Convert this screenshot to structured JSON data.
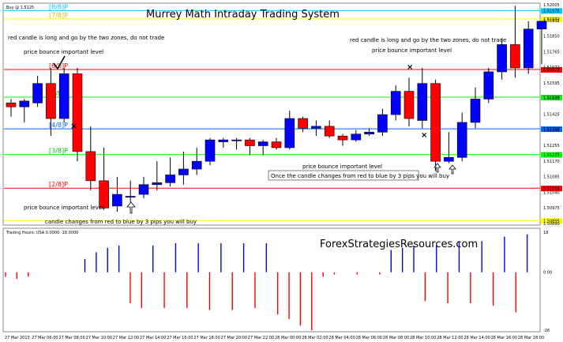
{
  "chart_data": {
    "type": "candlestick",
    "title": "Murrey Math Intraday Trading System",
    "symbol_label": "Buy @ 1.5125",
    "website": "ForexStrategiesResources.com",
    "price_axis": {
      "ylim": [
        1.5088,
        1.52005
      ],
      "ticks": [
        "1.52005",
        "1.51932",
        "1.51850",
        "1.51765",
        "1.51672",
        "1.51595",
        "1.51510",
        "1.51425",
        "1.51340",
        "1.51255",
        "1.51170",
        "1.51085",
        "1.51040",
        "1.50975",
        "1.50890"
      ]
    },
    "murrey_levels": [
      {
        "label": "[8/8]P",
        "price": 1.51975,
        "color": "#00c8ff",
        "tag": "1.51975"
      },
      {
        "label": "[7/8]P",
        "price": 1.51932,
        "color": "#ffff00",
        "tag": "1.51932"
      },
      {
        "label": "[6/8]P",
        "price": 1.51672,
        "color": "#ff0000",
        "tag": "1.51672"
      },
      {
        "label": "[5/8]P",
        "price": 1.5153,
        "color": "#00ff00",
        "tag": "1.51530"
      },
      {
        "label": "[4/8]P",
        "price": 1.51367,
        "color": "#0066ff",
        "tag": "1.51367"
      },
      {
        "label": "[3/8]P",
        "price": 1.51235,
        "color": "#00ff00",
        "tag": "1.51235"
      },
      {
        "label": "[2/8]P",
        "price": 1.51062,
        "color": "#ff0000",
        "tag": "1.51062"
      },
      {
        "label": "",
        "price": 1.50895,
        "color": "#ffff00",
        "tag": "1.50895"
      }
    ],
    "candles": [
      {
        "o": 1.515,
        "h": 1.5152,
        "l": 1.5143,
        "c": 1.5148
      },
      {
        "o": 1.5148,
        "h": 1.5152,
        "l": 1.514,
        "c": 1.5151
      },
      {
        "o": 1.515,
        "h": 1.5164,
        "l": 1.5148,
        "c": 1.516
      },
      {
        "o": 1.516,
        "h": 1.5168,
        "l": 1.5133,
        "c": 1.5142
      },
      {
        "o": 1.5142,
        "h": 1.5168,
        "l": 1.514,
        "c": 1.5165
      },
      {
        "o": 1.5165,
        "h": 1.5168,
        "l": 1.512,
        "c": 1.5125
      },
      {
        "o": 1.5125,
        "h": 1.5138,
        "l": 1.5105,
        "c": 1.511
      },
      {
        "o": 1.511,
        "h": 1.5127,
        "l": 1.5095,
        "c": 1.5096
      },
      {
        "o": 1.5097,
        "h": 1.5112,
        "l": 1.5094,
        "c": 1.5103
      },
      {
        "o": 1.5102,
        "h": 1.511,
        "l": 1.5096,
        "c": 1.5102
      },
      {
        "o": 1.5103,
        "h": 1.5112,
        "l": 1.5101,
        "c": 1.5108
      },
      {
        "o": 1.5108,
        "h": 1.512,
        "l": 1.5105,
        "c": 1.5109
      },
      {
        "o": 1.5109,
        "h": 1.5122,
        "l": 1.5107,
        "c": 1.5113
      },
      {
        "o": 1.5113,
        "h": 1.5125,
        "l": 1.5108,
        "c": 1.5116
      },
      {
        "o": 1.5116,
        "h": 1.5127,
        "l": 1.5113,
        "c": 1.512
      },
      {
        "o": 1.512,
        "h": 1.5132,
        "l": 1.5118,
        "c": 1.5131
      },
      {
        "o": 1.513,
        "h": 1.5132,
        "l": 1.5127,
        "c": 1.5131
      },
      {
        "o": 1.5131,
        "h": 1.5132,
        "l": 1.5126,
        "c": 1.5131
      },
      {
        "o": 1.5131,
        "h": 1.5132,
        "l": 1.5123,
        "c": 1.5128
      },
      {
        "o": 1.5128,
        "h": 1.5131,
        "l": 1.5123,
        "c": 1.513
      },
      {
        "o": 1.513,
        "h": 1.5132,
        "l": 1.5126,
        "c": 1.5127
      },
      {
        "o": 1.5127,
        "h": 1.5146,
        "l": 1.5126,
        "c": 1.5142
      },
      {
        "o": 1.5142,
        "h": 1.5143,
        "l": 1.5135,
        "c": 1.5137
      },
      {
        "o": 1.5137,
        "h": 1.5141,
        "l": 1.5133,
        "c": 1.5138
      },
      {
        "o": 1.5138,
        "h": 1.5141,
        "l": 1.5132,
        "c": 1.5133
      },
      {
        "o": 1.5133,
        "h": 1.5134,
        "l": 1.5128,
        "c": 1.5131
      },
      {
        "o": 1.5131,
        "h": 1.5136,
        "l": 1.513,
        "c": 1.5134
      },
      {
        "o": 1.5134,
        "h": 1.5137,
        "l": 1.5133,
        "c": 1.5135
      },
      {
        "o": 1.5135,
        "h": 1.5147,
        "l": 1.5133,
        "c": 1.5144
      },
      {
        "o": 1.5144,
        "h": 1.5159,
        "l": 1.5141,
        "c": 1.5156
      },
      {
        "o": 1.5156,
        "h": 1.5163,
        "l": 1.5138,
        "c": 1.5142
      },
      {
        "o": 1.5141,
        "h": 1.5168,
        "l": 1.5137,
        "c": 1.516
      },
      {
        "o": 1.516,
        "h": 1.5162,
        "l": 1.5115,
        "c": 1.512
      },
      {
        "o": 1.512,
        "h": 1.5135,
        "l": 1.5119,
        "c": 1.5122
      },
      {
        "o": 1.5122,
        "h": 1.5145,
        "l": 1.512,
        "c": 1.514
      },
      {
        "o": 1.514,
        "h": 1.5158,
        "l": 1.5137,
        "c": 1.5152
      },
      {
        "o": 1.5152,
        "h": 1.5168,
        "l": 1.515,
        "c": 1.5166
      },
      {
        "o": 1.5166,
        "h": 1.5183,
        "l": 1.5162,
        "c": 1.518
      },
      {
        "o": 1.518,
        "h": 1.52,
        "l": 1.5163,
        "c": 1.5168
      },
      {
        "o": 1.5168,
        "h": 1.5192,
        "l": 1.5165,
        "c": 1.5188
      },
      {
        "o": 1.5188,
        "h": 1.5192,
        "l": 1.517,
        "c": 1.5192
      }
    ],
    "indicator": {
      "label": "Trading Hours: USA 0.0000 -18.0000",
      "ylim": [
        -26,
        18
      ],
      "ticks": [
        "18",
        "0.00",
        "-26"
      ],
      "bars": [
        -2,
        -3,
        -2,
        0,
        0,
        0,
        0,
        6,
        9,
        11,
        12,
        -14,
        -16,
        12,
        -16,
        13,
        -16,
        13,
        -17,
        13,
        -17,
        13,
        -16,
        13,
        -19,
        -21,
        -24,
        -26,
        -2,
        -1,
        0,
        -1,
        0,
        -1,
        10,
        11,
        12,
        -13,
        12,
        -14,
        14,
        -14,
        14,
        -15,
        16,
        -18,
        17
      ]
    },
    "x_ticks": [
      "27 Mar 2013",
      "27 Mar 06:00",
      "27 Mar 08:00",
      "27 Mar 10:00",
      "27 Mar 12:00",
      "27 Mar 14:00",
      "27 Mar 16:00",
      "27 Mar 18:00",
      "27 Mar 20:00",
      "27 Mar 22:00",
      "28 Mar 00:00",
      "28 Mar 02:00",
      "28 Mar 04:00",
      "28 Mar 06:00",
      "28 Mar 08:00",
      "28 Mar 10:00",
      "28 Mar 12:00",
      "28 Mar 14:00",
      "28 Mar 16:00",
      "28 Mar 18:00"
    ],
    "annotations": {
      "left_trade": "red candle is long and go by the two zones, do not trade",
      "left_bounce": "price bounce important level",
      "bottom_bounce": "price bounce important level",
      "bottom_change": "candle changes from red to blue by 3 pips you will buy",
      "right_trade": "red candle is long and go by the two zones, do not trade",
      "right_bounce": "price bounce important level",
      "mid_bounce": "price bounce important level",
      "mid_change": "Once the candle changes from red to blue by 3 pips you will buy"
    },
    "colors": {
      "bull": "#0000ff",
      "bear": "#ff0000",
      "wick": "#000000",
      "frame": "#888888"
    }
  }
}
